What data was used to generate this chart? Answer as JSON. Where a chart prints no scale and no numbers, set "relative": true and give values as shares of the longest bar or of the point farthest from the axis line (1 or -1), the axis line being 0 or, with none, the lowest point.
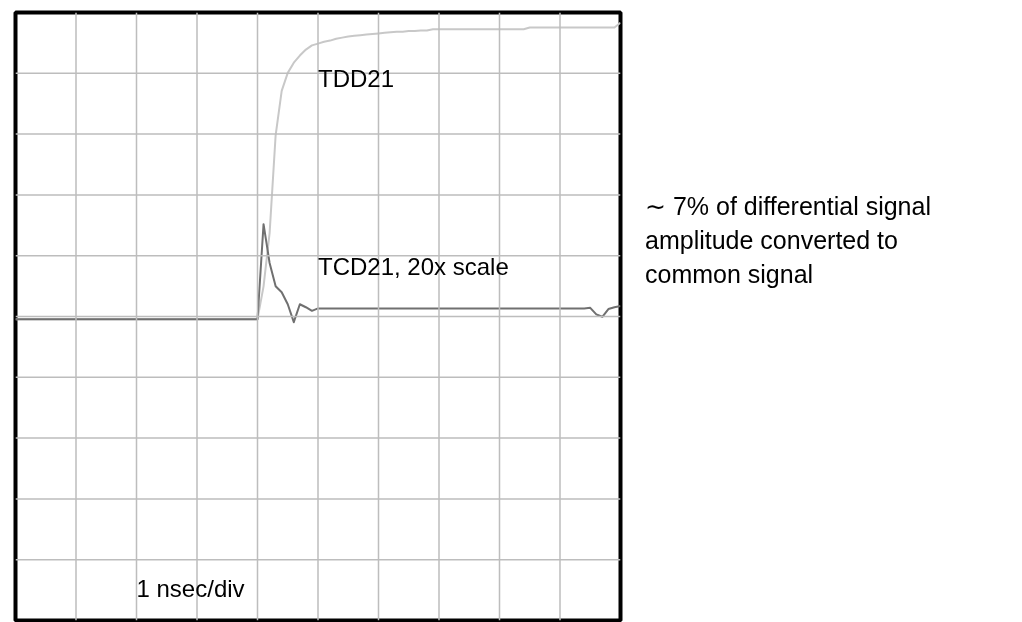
{
  "chart_data": {
    "type": "line",
    "relative": true,
    "grid": true,
    "tick_labels": false,
    "line_style": "solid",
    "categories": [
      null,
      null,
      null,
      null,
      null,
      null,
      null,
      null,
      null,
      null,
      null,
      null,
      null,
      null,
      null,
      null,
      null,
      null,
      null,
      null,
      null,
      null,
      null,
      null,
      null,
      null,
      null,
      null,
      null,
      null,
      null,
      null,
      null,
      null,
      null,
      null,
      null,
      null,
      null,
      null,
      null,
      null,
      null,
      null,
      null,
      null,
      null,
      null,
      null,
      null,
      null,
      null,
      null,
      null,
      null,
      null,
      null,
      null,
      null,
      null,
      null,
      null,
      null,
      null,
      null,
      null,
      null,
      null,
      null,
      null,
      null,
      null,
      null,
      null,
      null,
      null,
      null,
      null,
      null,
      null,
      null,
      null,
      null,
      null,
      null,
      null,
      null,
      null,
      null,
      null,
      null,
      null,
      null,
      null,
      null,
      null,
      null,
      null,
      null,
      null,
      null
    ],
    "series": [
      {
        "name": "TDD21",
        "color": "#c8c8c8",
        "values": [
          0.504,
          0.504,
          0.504,
          0.504,
          0.504,
          0.504,
          0.504,
          0.504,
          0.504,
          0.504,
          0.504,
          0.504,
          0.504,
          0.504,
          0.504,
          0.504,
          0.504,
          0.504,
          0.504,
          0.504,
          0.504,
          0.504,
          0.504,
          0.504,
          0.504,
          0.504,
          0.504,
          0.504,
          0.504,
          0.504,
          0.504,
          0.504,
          0.504,
          0.504,
          0.504,
          0.504,
          0.504,
          0.504,
          0.504,
          0.504,
          0.504,
          0.559,
          0.648,
          0.812,
          0.886,
          0.916,
          0.933,
          0.945,
          0.955,
          0.962,
          0.965,
          0.968,
          0.97,
          0.973,
          0.975,
          0.977,
          0.978,
          0.979,
          0.98,
          0.981,
          0.982,
          0.983,
          0.984,
          0.985,
          0.985,
          0.986,
          0.986,
          0.987,
          0.987,
          0.989,
          0.989,
          0.989,
          0.989,
          0.989,
          0.989,
          0.989,
          0.989,
          0.989,
          0.989,
          0.989,
          0.989,
          0.989,
          0.989,
          0.989,
          0.989,
          0.992,
          0.992,
          0.992,
          0.992,
          0.992,
          0.992,
          0.992,
          0.992,
          0.992,
          0.992,
          0.992,
          0.992,
          0.992,
          0.992,
          0.992,
          1
        ]
      },
      {
        "name": "TCD21, 20x scale",
        "color": "#707070",
        "values": [
          0.504,
          0.504,
          0.504,
          0.504,
          0.504,
          0.504,
          0.504,
          0.504,
          0.504,
          0.504,
          0.504,
          0.504,
          0.504,
          0.504,
          0.504,
          0.504,
          0.504,
          0.504,
          0.504,
          0.504,
          0.504,
          0.504,
          0.504,
          0.504,
          0.504,
          0.504,
          0.504,
          0.504,
          0.504,
          0.504,
          0.504,
          0.504,
          0.504,
          0.504,
          0.504,
          0.504,
          0.504,
          0.504,
          0.504,
          0.504,
          0.504,
          0.663,
          0.598,
          0.559,
          0.549,
          0.529,
          0.499,
          0.529,
          0.524,
          0.518,
          0.522,
          0.522,
          0.522,
          0.522,
          0.522,
          0.522,
          0.522,
          0.522,
          0.522,
          0.522,
          0.522,
          0.522,
          0.522,
          0.522,
          0.522,
          0.522,
          0.522,
          0.522,
          0.522,
          0.522,
          0.522,
          0.522,
          0.522,
          0.522,
          0.522,
          0.522,
          0.522,
          0.522,
          0.522,
          0.522,
          0.522,
          0.522,
          0.522,
          0.522,
          0.522,
          0.522,
          0.522,
          0.522,
          0.522,
          0.522,
          0.522,
          0.522,
          0.522,
          0.522,
          0.522,
          0.523,
          0.512,
          0.508,
          0.521,
          0.524,
          0.526
        ]
      }
    ],
    "annotations": [
      "1 nsec/div",
      "∼ 7% of differential signal amplitude converted to common signal"
    ]
  }
}
